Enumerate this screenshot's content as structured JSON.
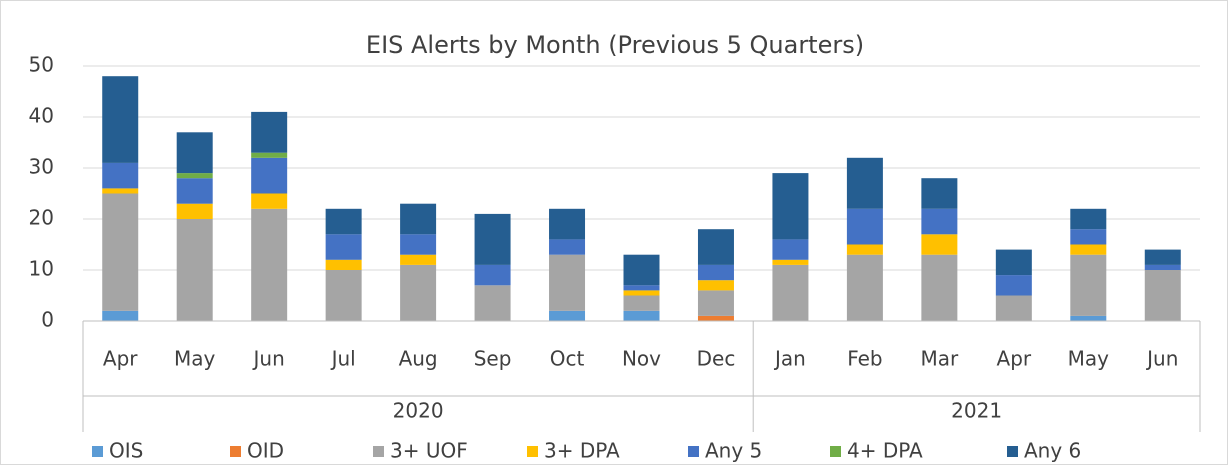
{
  "chart_data": {
    "type": "stacked_bar",
    "title": "EIS Alerts by Month (Previous 5 Quarters)",
    "categories": [
      "Apr",
      "May",
      "Jun",
      "Jul",
      "Aug",
      "Sep",
      "Oct",
      "Nov",
      "Dec",
      "Jan",
      "Feb",
      "Mar",
      "Apr",
      "May",
      "Jun"
    ],
    "category_groups": [
      {
        "label": "2020",
        "size": 9
      },
      {
        "label": "2021",
        "size": 6
      }
    ],
    "series": [
      {
        "name": "OIS",
        "color": "#5b9bd5",
        "values": [
          2,
          0,
          0,
          0,
          0,
          0,
          2,
          2,
          0,
          0,
          0,
          0,
          0,
          1,
          0
        ]
      },
      {
        "name": "OID",
        "color": "#ed7d31",
        "values": [
          0,
          0,
          0,
          0,
          0,
          0,
          0,
          0,
          1,
          0,
          0,
          0,
          0,
          0,
          0
        ]
      },
      {
        "name": "3+ UOF",
        "color": "#a5a5a5",
        "values": [
          23,
          20,
          22,
          10,
          11,
          7,
          11,
          3,
          5,
          11,
          13,
          13,
          5,
          12,
          10
        ]
      },
      {
        "name": "3+ DPA",
        "color": "#ffc000",
        "values": [
          1,
          3,
          3,
          2,
          2,
          0,
          0,
          1,
          2,
          1,
          2,
          4,
          0,
          2,
          0
        ]
      },
      {
        "name": "Any 5",
        "color": "#4472c4",
        "values": [
          5,
          5,
          7,
          5,
          4,
          4,
          3,
          1,
          3,
          4,
          7,
          5,
          4,
          3,
          1
        ]
      },
      {
        "name": "4+ DPA",
        "color": "#70ad47",
        "values": [
          0,
          1,
          1,
          0,
          0,
          0,
          0,
          0,
          0,
          0,
          0,
          0,
          0,
          0,
          0
        ]
      },
      {
        "name": "Any 6",
        "color": "#255e91",
        "values": [
          17,
          8,
          8,
          5,
          6,
          10,
          6,
          6,
          7,
          13,
          10,
          6,
          5,
          4,
          3
        ]
      }
    ],
    "ylim": [
      0,
      50
    ],
    "yticks": [
      0,
      10,
      20,
      30,
      40,
      50
    ],
    "grid": true,
    "legend": "bottom"
  }
}
